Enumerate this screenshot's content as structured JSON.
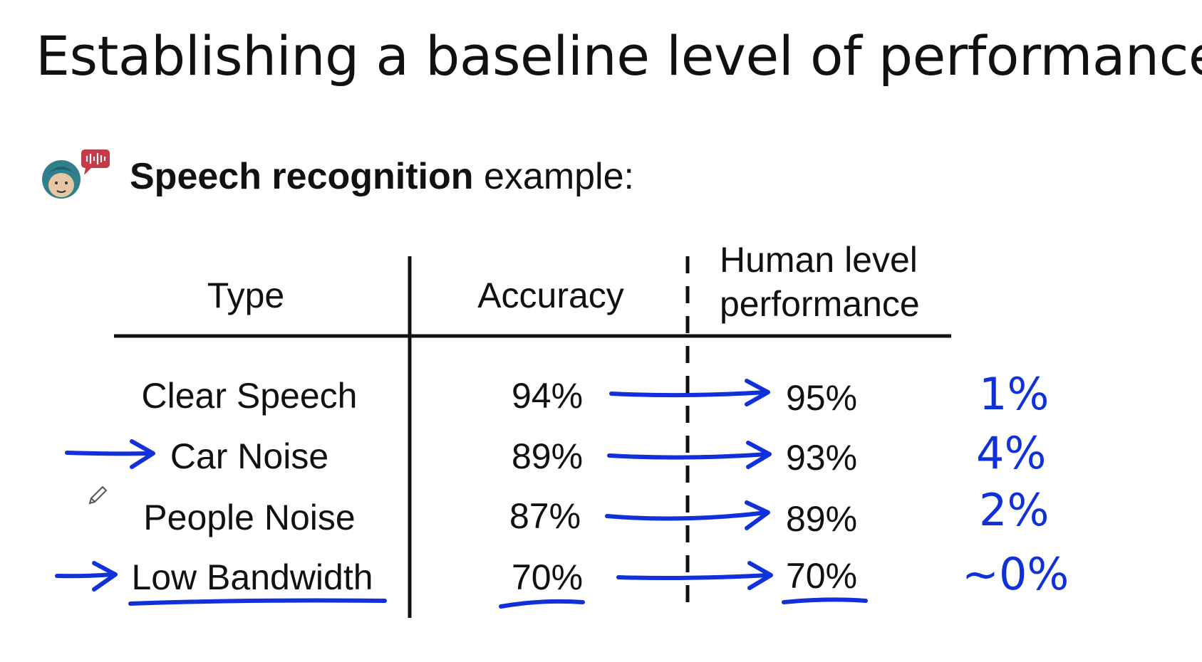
{
  "title": "Establishing a baseline level of performance",
  "subtitle": {
    "bold": "Speech recognition",
    "rest": " example:"
  },
  "icon": "speech-recognition-avatar-icon",
  "table": {
    "headers": {
      "type": "Type",
      "accuracy": "Accuracy",
      "human_line1": "Human level",
      "human_line2": "performance"
    },
    "rows": [
      {
        "type": "Clear Speech",
        "accuracy": "94%",
        "human": "95%",
        "gap": "1%"
      },
      {
        "type": "Car Noise",
        "accuracy": "89%",
        "human": "93%",
        "gap": "4%"
      },
      {
        "type": "People Noise",
        "accuracy": "87%",
        "human": "89%",
        "gap": "2%"
      },
      {
        "type": "Low Bandwidth",
        "accuracy": "70%",
        "human": "70%",
        "gap": "~0%"
      }
    ]
  },
  "colors": {
    "ink": "#1030d8",
    "text": "#111111",
    "icon_teal": "#2f7f8c",
    "icon_red": "#c33a4a"
  }
}
